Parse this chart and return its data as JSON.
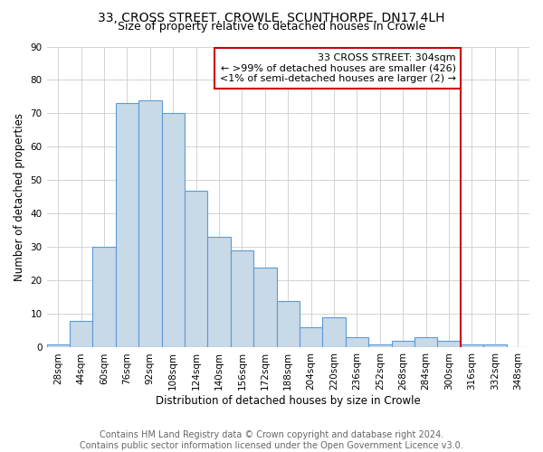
{
  "title": "33, CROSS STREET, CROWLE, SCUNTHORPE, DN17 4LH",
  "subtitle": "Size of property relative to detached houses in Crowle",
  "xlabel": "Distribution of detached houses by size in Crowle",
  "ylabel": "Number of detached properties",
  "footnote1": "Contains HM Land Registry data © Crown copyright and database right 2024.",
  "footnote2": "Contains public sector information licensed under the Open Government Licence v3.0.",
  "bar_labels": [
    "28sqm",
    "44sqm",
    "60sqm",
    "76sqm",
    "92sqm",
    "108sqm",
    "124sqm",
    "140sqm",
    "156sqm",
    "172sqm",
    "188sqm",
    "204sqm",
    "220sqm",
    "236sqm",
    "252sqm",
    "268sqm",
    "284sqm",
    "300sqm",
    "316sqm",
    "332sqm",
    "348sqm"
  ],
  "bar_values": [
    1,
    8,
    30,
    73,
    74,
    70,
    47,
    33,
    29,
    24,
    14,
    6,
    9,
    3,
    1,
    2,
    3,
    2,
    1,
    1,
    0
  ],
  "bar_color": "#c8d9e8",
  "bar_edge_color": "#5b9bd5",
  "grid_color": "#cccccc",
  "vline_color": "#cc0000",
  "annotation_title": "33 CROSS STREET: 304sqm",
  "annotation_line1": "← >99% of detached houses are smaller (426)",
  "annotation_line2": "<1% of semi-detached houses are larger (2) →",
  "annotation_box_color": "#cc0000",
  "ylim": [
    0,
    90
  ],
  "yticks": [
    0,
    10,
    20,
    30,
    40,
    50,
    60,
    70,
    80,
    90
  ],
  "title_fontsize": 10,
  "subtitle_fontsize": 9,
  "axis_label_fontsize": 8.5,
  "tick_fontsize": 7.5,
  "annotation_fontsize": 8,
  "footnote_fontsize": 7
}
